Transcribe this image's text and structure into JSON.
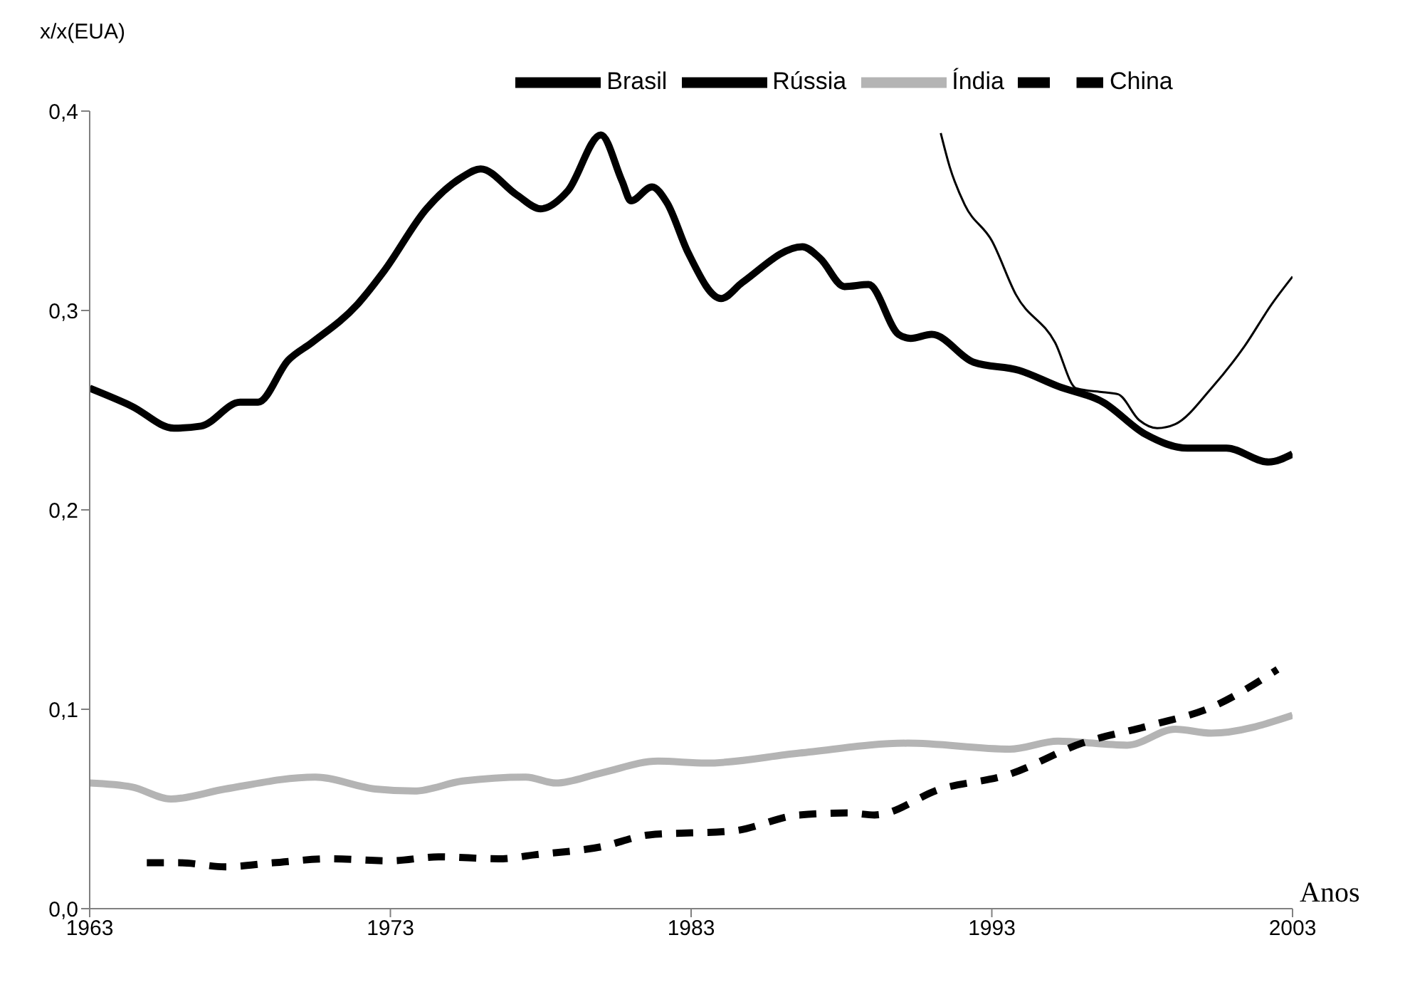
{
  "chart_data": {
    "type": "line",
    "xlabel": "Anos",
    "ylabel": "x/x(EUA)",
    "xlim": [
      1963,
      2003
    ],
    "xticks": [
      1963,
      1973,
      1983,
      1993,
      2003
    ],
    "ylim": [
      0,
      0.4
    ],
    "yticks": [
      {
        "value": 0,
        "label": "0,0"
      },
      {
        "value": 0.1,
        "label": "0,1"
      },
      {
        "value": 0.2,
        "label": "0,2"
      },
      {
        "value": 0.3,
        "label": "0,3"
      },
      {
        "value": 0.4,
        "label": "0,4"
      }
    ],
    "grid": false,
    "legend": "top",
    "marker": "none",
    "series": [
      {
        "name": "Brasil",
        "color": "#000000",
        "line_style": "solid",
        "x": [
          1963,
          1964.4,
          1965.8,
          1966.7,
          1968.0,
          1968.6,
          1969.6,
          1970.4,
          1971.9,
          1972.8,
          1974.2,
          1975.4,
          1976.0,
          1977.2,
          1978.0,
          1978.9,
          1980.0,
          1980.7,
          1981.0,
          1981.7,
          1982.2,
          1982.9,
          1984.0,
          1984.7,
          1986.7,
          1987.3,
          1988.1,
          1988.9,
          1989.9,
          1990.3,
          1991.0,
          1992.4,
          1993.9,
          1995.2,
          1996.7,
          1998.1,
          1999.5,
          2000.8,
          2002.2,
          2003
        ],
        "values": [
          0.261,
          0.252,
          0.241,
          0.242,
          0.254,
          0.254,
          0.275,
          0.284,
          0.303,
          0.32,
          0.351,
          0.367,
          0.371,
          0.358,
          0.351,
          0.36,
          0.388,
          0.365,
          0.355,
          0.362,
          0.354,
          0.329,
          0.306,
          0.314,
          0.332,
          0.326,
          0.312,
          0.313,
          0.288,
          0.286,
          0.288,
          0.274,
          0.27,
          0.262,
          0.254,
          0.238,
          0.231,
          0.231,
          0.224,
          0.228
        ]
      },
      {
        "name": "Rússia",
        "color": "#000000",
        "line_style": "solid",
        "x": [
          1991.3,
          1991.6,
          1992.1,
          1993.0,
          1993.8,
          1995.1,
          1995.8,
          1996.7,
          1997.2,
          1997.9,
          1998.5,
          1999.1,
          2000.3,
          2001.4,
          2002.3,
          2003
        ],
        "values": [
          0.389,
          0.372,
          0.353,
          0.335,
          0.308,
          0.284,
          0.261,
          0.259,
          0.258,
          0.245,
          0.241,
          0.243,
          0.261,
          0.282,
          0.303,
          0.317
        ]
      },
      {
        "name": "Índia",
        "color": "#b4b4b4",
        "line_style": "solid",
        "x": [
          1963,
          1964.4,
          1965.7,
          1967.5,
          1970.5,
          1972.5,
          1973.8,
          1975.4,
          1977.5,
          1978.5,
          1980.0,
          1981.9,
          1983.5,
          1986.6,
          1990.2,
          1993.6,
          1995.2,
          1997.5,
          1999.1,
          2000.3,
          2003
        ],
        "values": [
          0.063,
          0.061,
          0.055,
          0.06,
          0.066,
          0.06,
          0.059,
          0.064,
          0.066,
          0.063,
          0.068,
          0.074,
          0.073,
          0.078,
          0.083,
          0.08,
          0.084,
          0.082,
          0.09,
          0.088,
          0.097
        ]
      },
      {
        "name": "China",
        "color": "#000000",
        "line_style": "dashed",
        "x": [
          1964.9,
          1966.0,
          1967.5,
          1969.1,
          1971.0,
          1973.0,
          1974.6,
          1976.6,
          1977.8,
          1980.0,
          1981.6,
          1984.4,
          1986.6,
          1988.2,
          1989.1,
          1991.3,
          1993.5,
          1996.0,
          1998.3,
          2000.3,
          2002.5
        ],
        "values": [
          0.023,
          0.023,
          0.021,
          0.023,
          0.025,
          0.024,
          0.026,
          0.025,
          0.027,
          0.031,
          0.037,
          0.039,
          0.047,
          0.048,
          0.047,
          0.06,
          0.067,
          0.083,
          0.092,
          0.101,
          0.12
        ]
      }
    ]
  }
}
